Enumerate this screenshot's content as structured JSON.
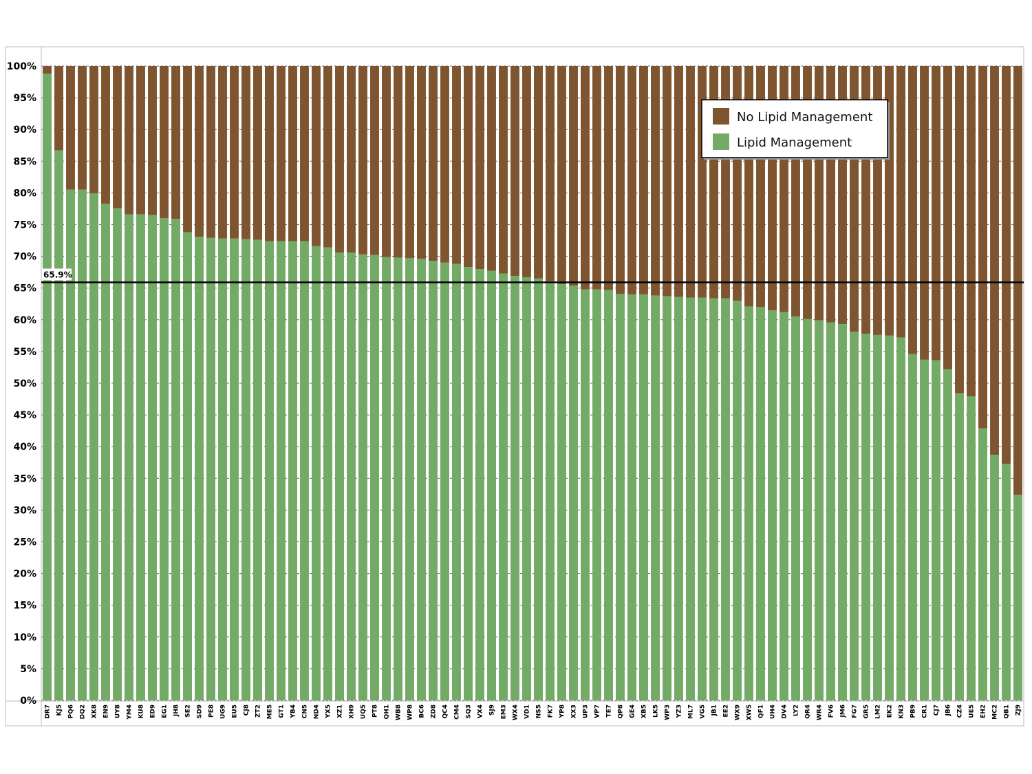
{
  "colors": {
    "lipid": "#72AA66",
    "no_lipid": "#7F5530",
    "grid": "#666666",
    "reference_line": "#000000"
  },
  "legend": {
    "placement": "top-right",
    "items": [
      {
        "label": "No Lipid Management",
        "color": "#7F5530"
      },
      {
        "label": "Lipid Management",
        "color": "#72AA66"
      }
    ]
  },
  "reference": {
    "value": 65.9,
    "label": "65.9%"
  },
  "chart_data": {
    "type": "bar",
    "stacked": true,
    "percent": true,
    "ylim": [
      0,
      100
    ],
    "yticks": [
      "0%",
      "5%",
      "10%",
      "15%",
      "20%",
      "25%",
      "30%",
      "35%",
      "40%",
      "45%",
      "50%",
      "55%",
      "60%",
      "65%",
      "70%",
      "75%",
      "80%",
      "85%",
      "90%",
      "95%",
      "100%"
    ],
    "grid": true,
    "categories": [
      "DR7",
      "KJ5",
      "PQ6",
      "DQ2",
      "XK8",
      "EN9",
      "UY8",
      "YM4",
      "KU8",
      "ED9",
      "EG1",
      "JH8",
      "SE2",
      "SD9",
      "PE8",
      "UG9",
      "EU5",
      "CJ8",
      "ZT2",
      "ME5",
      "GT1",
      "YB4",
      "CN5",
      "ND4",
      "YX5",
      "XZ1",
      "XH9",
      "UQ5",
      "PT8",
      "QH1",
      "WB8",
      "WP8",
      "BC6",
      "ZD8",
      "QC4",
      "CM4",
      "SQ3",
      "VX4",
      "SJ9",
      "EM3",
      "WX4",
      "VD1",
      "NS5",
      "FK7",
      "YP8",
      "XX3",
      "UP3",
      "VP7",
      "TE7",
      "QP8",
      "GE4",
      "XB5",
      "LK5",
      "WP3",
      "YZ3",
      "ML7",
      "VG5",
      "JB1",
      "EE2",
      "WX9",
      "XW5",
      "QF1",
      "UH4",
      "DV4",
      "LY2",
      "QR4",
      "WR4",
      "FV6",
      "JM6",
      "FG7",
      "GR5",
      "LM2",
      "EK2",
      "KN3",
      "PB9",
      "CR1",
      "CJ7",
      "JB6",
      "CZ4",
      "UE5",
      "EH2",
      "MC2",
      "QB1",
      "ZJ9"
    ],
    "series": [
      {
        "name": "Lipid Management",
        "values": [
          98.8,
          86.7,
          80.5,
          80.5,
          79.9,
          78.3,
          77.6,
          76.6,
          76.6,
          76.5,
          76.0,
          75.9,
          73.8,
          73.1,
          72.9,
          72.8,
          72.8,
          72.7,
          72.6,
          72.4,
          72.4,
          72.4,
          72.4,
          71.6,
          71.4,
          70.6,
          70.6,
          70.3,
          70.2,
          69.9,
          69.8,
          69.7,
          69.6,
          69.3,
          69.0,
          68.8,
          68.3,
          68.0,
          67.7,
          67.3,
          66.9,
          66.7,
          66.5,
          66.1,
          65.6,
          65.4,
          64.8,
          64.8,
          64.7,
          64.1,
          64.0,
          64.0,
          63.8,
          63.7,
          63.6,
          63.5,
          63.5,
          63.4,
          63.4,
          63.0,
          62.1,
          62.0,
          61.5,
          61.2,
          60.5,
          60.1,
          59.9,
          59.6,
          59.3,
          58.1,
          57.8,
          57.6,
          57.5,
          57.2,
          54.6,
          53.7,
          53.6,
          52.2,
          48.4,
          47.9,
          42.9,
          38.7,
          37.3,
          32.4
        ]
      },
      {
        "name": "No Lipid Management",
        "values": [
          1.2,
          13.3,
          19.5,
          19.5,
          20.1,
          21.7,
          22.4,
          23.4,
          23.4,
          23.5,
          24.0,
          24.1,
          26.2,
          26.9,
          27.1,
          27.2,
          27.2,
          27.3,
          27.4,
          27.6,
          27.6,
          27.6,
          27.6,
          28.4,
          28.6,
          29.4,
          29.4,
          29.7,
          29.8,
          30.1,
          30.2,
          30.3,
          30.4,
          30.7,
          31.0,
          31.2,
          31.7,
          32.0,
          32.3,
          32.7,
          33.1,
          33.3,
          33.5,
          33.9,
          34.4,
          34.6,
          35.2,
          35.2,
          35.3,
          35.9,
          36.0,
          36.0,
          36.2,
          36.3,
          36.4,
          36.5,
          36.5,
          36.6,
          36.6,
          37.0,
          37.9,
          38.0,
          38.5,
          38.8,
          39.5,
          39.9,
          40.1,
          40.4,
          40.7,
          41.9,
          42.2,
          42.4,
          42.5,
          42.8,
          45.4,
          46.3,
          46.4,
          47.8,
          51.6,
          52.1,
          57.1,
          61.3,
          62.7,
          67.6
        ]
      }
    ]
  }
}
